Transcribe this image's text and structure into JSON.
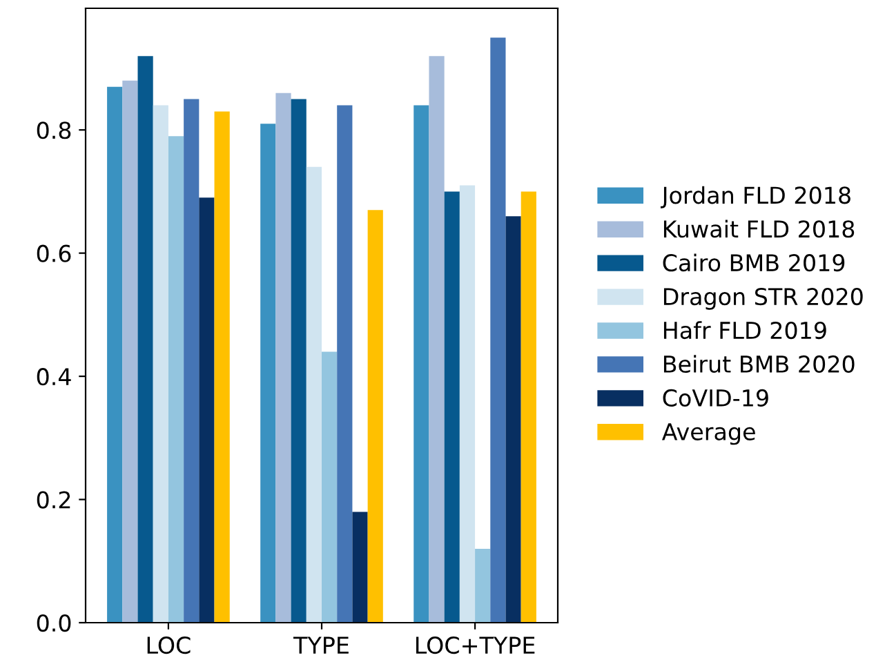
{
  "chart_data": {
    "type": "bar",
    "categories": [
      "LOC",
      "TYPE",
      "LOC+TYPE"
    ],
    "series": [
      {
        "name": "Jordan FLD 2018",
        "color": "#3a92c1",
        "values": [
          0.87,
          0.81,
          0.84
        ]
      },
      {
        "name": "Kuwait FLD 2018",
        "color": "#a7bcdb",
        "values": [
          0.88,
          0.86,
          0.92
        ]
      },
      {
        "name": "Cairo BMB 2019",
        "color": "#07598e",
        "values": [
          0.92,
          0.85,
          0.7
        ]
      },
      {
        "name": "Dragon STR 2020",
        "color": "#d0e4f0",
        "values": [
          0.84,
          0.74,
          0.71
        ]
      },
      {
        "name": "Hafr FLD 2019",
        "color": "#93c5df",
        "values": [
          0.79,
          0.44,
          0.12
        ]
      },
      {
        "name": "Beirut BMB 2020",
        "color": "#4575b5",
        "values": [
          0.85,
          0.84,
          0.95
        ]
      },
      {
        "name": "CoVID-19",
        "color": "#082f61",
        "values": [
          0.69,
          0.18,
          0.66
        ]
      },
      {
        "name": "Average",
        "color": "#ffc000",
        "values": [
          0.83,
          0.67,
          0.7
        ]
      }
    ],
    "ylim": [
      0,
      0.9975
    ],
    "yticks": [
      {
        "value": 0.0,
        "label": "0.0"
      },
      0.2,
      0.4,
      0.6,
      0.8
    ],
    "grid": false,
    "legend": "right"
  }
}
